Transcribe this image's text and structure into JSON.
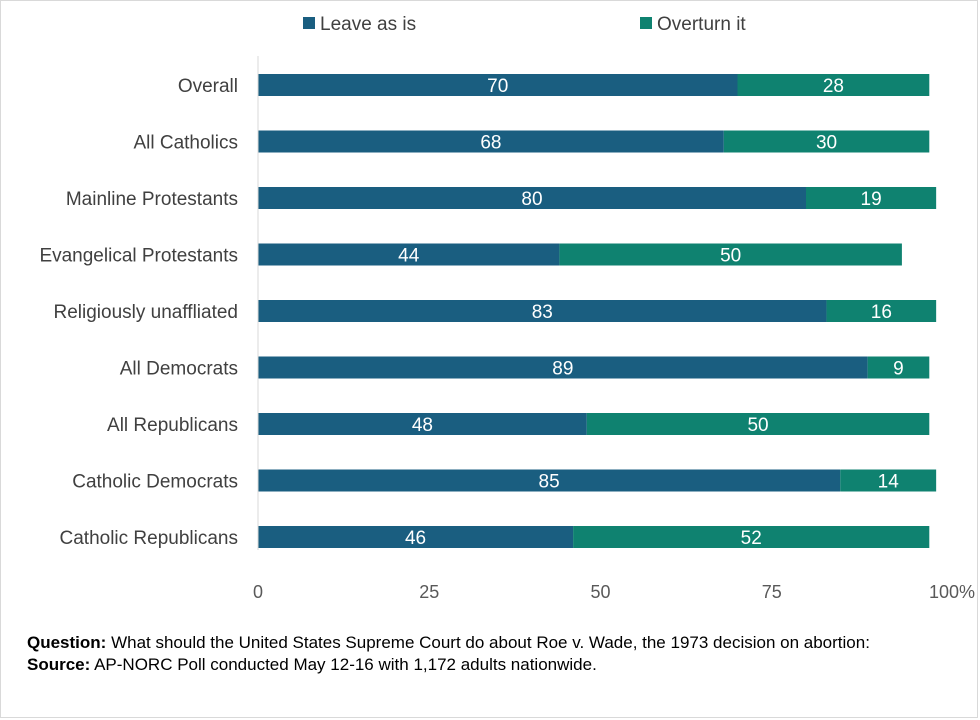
{
  "chart_data": {
    "type": "bar",
    "orientation": "horizontal",
    "stacked": true,
    "categories": [
      "Overall",
      "All Catholics",
      "Mainline Protestants",
      "Evangelical Protestants",
      "Religiously unaffliated",
      "All Democrats",
      "All Republicans",
      "Catholic Democrats",
      "Catholic Republicans"
    ],
    "series": [
      {
        "name": "Leave as is",
        "color": "#1a5e80",
        "values": [
          70,
          68,
          80,
          44,
          83,
          89,
          48,
          85,
          46
        ]
      },
      {
        "name": "Overturn it",
        "color": "#0f8270",
        "values": [
          28,
          30,
          19,
          50,
          16,
          9,
          50,
          14,
          52
        ]
      }
    ],
    "xlim": [
      0,
      100
    ],
    "x_ticks": [
      "0",
      "25",
      "50",
      "75",
      "100%"
    ],
    "x_tick_values": [
      0,
      25,
      50,
      75,
      100
    ],
    "legend_position": "top",
    "grid": false
  },
  "notes": {
    "question_label": "Question:",
    "question_text": " What should the United States Supreme Court do about Roe v. Wade, the 1973 decision on abortion:",
    "source_label": "Source:",
    "source_text": " AP-NORC Poll conducted May 12-16 with 1,172 adults nationwide."
  }
}
